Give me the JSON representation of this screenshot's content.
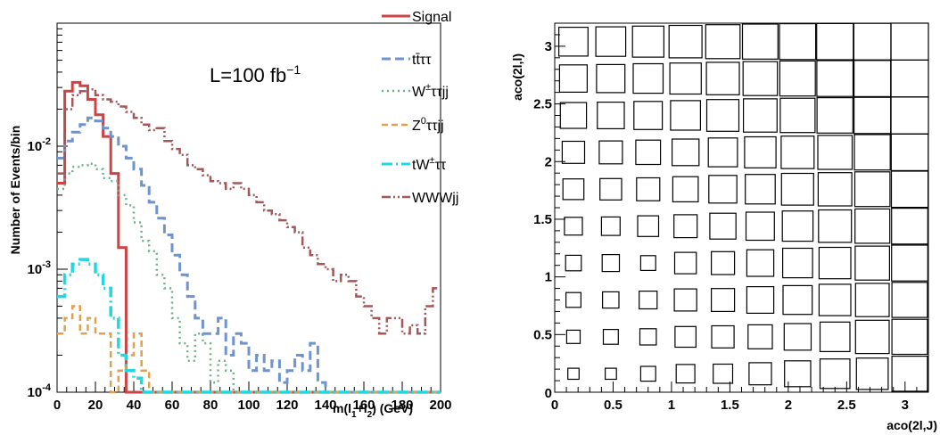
{
  "chart_data": [
    {
      "type": "line",
      "subtype": "step-histogram",
      "xlabel": "m(l₁+l₂) (GeV)",
      "xlabel_parts": {
        "pre": "m(l",
        "sub1": "1",
        "mid": "+l",
        "sub2": "2",
        "post": ") (GeV)"
      },
      "ylabel": "Number of Events/bin",
      "annotation": {
        "pre": "L=100 fb",
        "sup": "−1"
      },
      "xlim": [
        0,
        200
      ],
      "ylim": [
        0.0001,
        0.1
      ],
      "yscale": "log",
      "x_ticks": [
        "0",
        "20",
        "40",
        "60",
        "80",
        "100",
        "120",
        "140",
        "160",
        "180",
        "200"
      ],
      "y_ticks": [
        {
          "base": "10",
          "exp": "-4",
          "value": 0.0001
        },
        {
          "base": "10",
          "exp": "-3",
          "value": 0.001
        },
        {
          "base": "10",
          "exp": "-2",
          "value": 0.01
        }
      ],
      "bin_width": 4,
      "x_start": 0,
      "legend_position": "top-right, outside plot",
      "series": [
        {
          "name": "Signal",
          "label_main": "Signal",
          "label_sup": "",
          "label_rest": "",
          "color": "#cc4444",
          "dash": "",
          "width": 3,
          "values": [
            0.005,
            0.028,
            0.033,
            0.031,
            0.024,
            0.018,
            0.012,
            0.006,
            0.0015,
            0.0001,
            0,
            0,
            0,
            0,
            0,
            0,
            0,
            0,
            0,
            0,
            0,
            0,
            0,
            0,
            0,
            0,
            0,
            0,
            0,
            0,
            0,
            0,
            0,
            0,
            0,
            0,
            0,
            0,
            0,
            0,
            0,
            0,
            0,
            0,
            0,
            0,
            0,
            0,
            0,
            0
          ]
        },
        {
          "name": "tt̄ττ",
          "label_main": "tt̄ττ",
          "label_sup": "",
          "label_rest": "",
          "color": "#6f93cc",
          "dash": "10,5",
          "width": 3,
          "values": [
            0.008,
            0.011,
            0.013,
            0.015,
            0.017,
            0.016,
            0.014,
            0.012,
            0.01,
            0.008,
            0.0065,
            0.0048,
            0.0035,
            0.0026,
            0.0019,
            0.0013,
            0.0009,
            0.0006,
            0.0004,
            0.0003,
            0.0003,
            0.0004,
            0.0002,
            0.0003,
            0.00025,
            0.00015,
            0.0002,
            0.00015,
            0.00018,
            0.00012,
            0.00015,
            0.0002,
            0.00015,
            0.00025,
            0.00012,
            0,
            0,
            0,
            0,
            0,
            0,
            0,
            0,
            0,
            0,
            0,
            0,
            0,
            0,
            0
          ]
        },
        {
          "name": "W±ττjj",
          "label_main": "W",
          "label_sup": "±",
          "label_rest": "ττjj",
          "color": "#6fb08a",
          "dash": "2,4",
          "width": 2.5,
          "values": [
            0.0045,
            0.006,
            0.0068,
            0.007,
            0.0072,
            0.0065,
            0.0055,
            0.0052,
            0.004,
            0.0033,
            0.0024,
            0.0017,
            0.0014,
            0.0009,
            0.0007,
            0.0004,
            0.00025,
            0.00018,
            0.0003,
            0.00025,
            0.00012,
            0.00018,
            0.00015,
            0,
            0,
            0,
            0,
            0,
            0,
            0,
            0,
            0,
            0,
            0,
            0,
            0,
            0,
            0,
            0,
            0,
            0,
            0,
            0,
            0,
            0,
            0,
            0,
            0,
            0,
            0
          ]
        },
        {
          "name": "Z⁰ττjj",
          "label_main": "Z",
          "label_sup": "0",
          "label_rest": "ττjj",
          "color": "#e0a050",
          "dash": "7,4",
          "width": 2.5,
          "values": [
            0.0003,
            0.0004,
            0.0005,
            0.0003,
            0.0004,
            0.0003,
            0.0003,
            0.0001,
            0.00015,
            0.0002,
            0.0003,
            0.00015,
            0.0001,
            0,
            0,
            0,
            0,
            0,
            0,
            0,
            0,
            0,
            0,
            0,
            0,
            0,
            0,
            0,
            0,
            0,
            0,
            0,
            0,
            0,
            0,
            0,
            0,
            0,
            0,
            0,
            0,
            0,
            0,
            0,
            0,
            0,
            0,
            0,
            0,
            0
          ]
        },
        {
          "name": "tW±ττ",
          "label_main": "tW",
          "label_sup": "±",
          "label_rest": "ττ",
          "color": "#22d8e0",
          "dash": "12,4,2,4",
          "width": 3.5,
          "values": [
            0.0006,
            0.0009,
            0.0011,
            0.0012,
            0.0011,
            0.0009,
            0.0007,
            0.0004,
            0.0002,
            0.00015,
            0.00013,
            0.0001,
            0.0001,
            0.0001,
            0.0001,
            0.0001,
            0,
            0,
            0,
            0,
            0,
            0,
            0,
            0,
            0,
            0,
            0,
            0,
            0,
            0,
            0,
            0,
            0,
            0,
            0,
            0,
            0,
            0,
            0,
            0,
            0,
            0,
            0,
            0,
            0,
            0,
            0,
            0,
            0,
            0
          ]
        },
        {
          "name": "WWWjj",
          "label_main": "WWWjj",
          "label_sup": "",
          "label_rest": "",
          "color": "#a05858",
          "dash": "10,3,2,3,2,3",
          "width": 2.5,
          "values": [
            0.006,
            0.02,
            0.026,
            0.028,
            0.029,
            0.026,
            0.024,
            0.023,
            0.021,
            0.019,
            0.017,
            0.015,
            0.0135,
            0.014,
            0.011,
            0.0095,
            0.0085,
            0.007,
            0.0065,
            0.0058,
            0.0052,
            0.005,
            0.0045,
            0.005,
            0.0045,
            0.004,
            0.0035,
            0.003,
            0.0028,
            0.0025,
            0.0022,
            0.002,
            0.0015,
            0.0013,
            0.0011,
            0.001,
            0.0008,
            0.0009,
            0.0008,
            0.0006,
            0.0005,
            0.0004,
            0.0003,
            0.0004,
            0.0004,
            0.0003,
            0.00035,
            0.0003,
            0.0005,
            0.0007
          ]
        }
      ]
    },
    {
      "type": "heatmap",
      "subtype": "box",
      "xlabel": "aco(2l,J)",
      "ylabel": "aco(2l,l)",
      "xlim": [
        0,
        3.2
      ],
      "ylim": [
        0,
        3.2
      ],
      "x_ticks": [
        "0",
        "0.5",
        "1",
        "1.5",
        "2",
        "2.5",
        "3"
      ],
      "y_ticks": [
        "0.5",
        "1",
        "1.5",
        "2",
        "2.5",
        "3"
      ],
      "n_bins": 10,
      "z": [
        [
          0.3,
          0.3,
          0.4,
          0.5,
          0.52,
          0.6,
          0.7,
          0.8,
          0.85,
          0.95
        ],
        [
          0.36,
          0.4,
          0.44,
          0.56,
          0.6,
          0.65,
          0.72,
          0.8,
          0.9,
          0.95
        ],
        [
          0.4,
          0.44,
          0.48,
          0.6,
          0.62,
          0.72,
          0.78,
          0.85,
          0.9,
          0.95
        ],
        [
          0.42,
          0.46,
          0.4,
          0.58,
          0.62,
          0.72,
          0.8,
          0.85,
          0.92,
          0.97
        ],
        [
          0.48,
          0.5,
          0.56,
          0.62,
          0.7,
          0.76,
          0.82,
          0.88,
          0.93,
          0.97
        ],
        [
          0.56,
          0.58,
          0.62,
          0.68,
          0.75,
          0.8,
          0.86,
          0.9,
          0.94,
          0.98
        ],
        [
          0.6,
          0.62,
          0.66,
          0.72,
          0.78,
          0.84,
          0.88,
          0.92,
          0.96,
          0.99
        ],
        [
          0.7,
          0.72,
          0.76,
          0.8,
          0.86,
          0.9,
          0.93,
          0.96,
          0.98,
          1.0
        ],
        [
          0.74,
          0.76,
          0.8,
          0.84,
          0.88,
          0.92,
          0.95,
          0.97,
          0.98,
          1.0
        ],
        [
          0.78,
          0.8,
          0.84,
          0.88,
          0.92,
          0.95,
          0.97,
          0.98,
          0.99,
          1.0
        ]
      ]
    }
  ]
}
